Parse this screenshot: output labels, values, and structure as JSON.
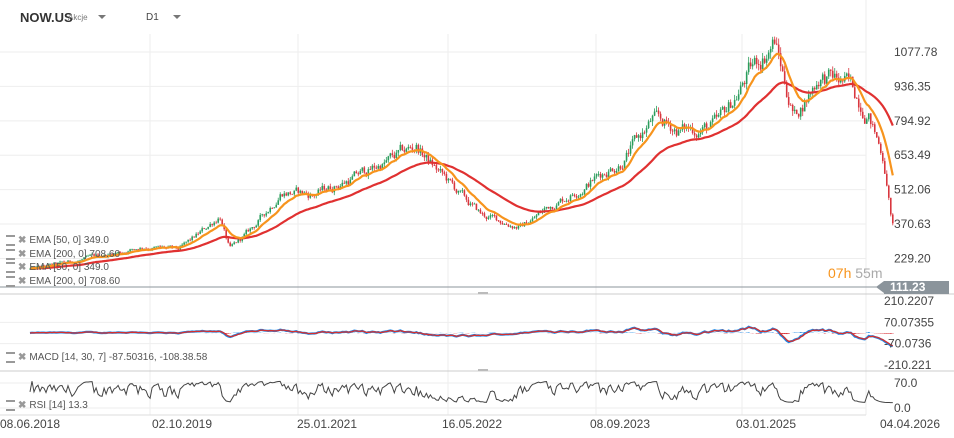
{
  "header": {
    "symbol": "NOW.US",
    "asset_type": "Akcje",
    "timeframe": "D1"
  },
  "price_axis": {
    "labels": [
      "1077.78",
      "936.35",
      "794.92",
      "653.49",
      "512.06",
      "370.63",
      "229.20"
    ],
    "values": [
      1077.78,
      936.35,
      794.92,
      653.49,
      512.06,
      370.63,
      229.2
    ]
  },
  "current_price": "111.23",
  "countdown": {
    "hours": "07h",
    "minutes": "55m"
  },
  "legend": [
    {
      "label": "EMA [50, 0] 349.0"
    },
    {
      "label": "EMA [200, 0] 708.60"
    },
    {
      "label": "EMA [50, 0] 349.0"
    },
    {
      "label": "EMA [200, 0] 708.60"
    }
  ],
  "macd": {
    "label": "MACD [14, 30, 7] -87.50316, -108.38.58",
    "axis_labels": [
      "210.2207",
      "70.07355",
      "-70.0736",
      "-210.221"
    ],
    "axis_values": [
      210.2207,
      70.07355,
      -70.0736,
      -210.221
    ]
  },
  "rsi": {
    "label": "RSI [14] 13.3",
    "axis_labels": [
      "70.0",
      "0.0"
    ],
    "axis_values": [
      70,
      0
    ]
  },
  "date_axis": {
    "labels": [
      "08.06.2018",
      "02.10.2019",
      "25.01.2021",
      "16.05.2022",
      "08.09.2023",
      "03.01.2025",
      "04.04.2026"
    ]
  },
  "colors": {
    "up": "#2a9d5c",
    "down": "#d9363e",
    "ema50": "#f7941d",
    "ema200": "#e03131",
    "macd": "#1e88e5",
    "signal": "#d32f2f"
  },
  "chart_data": {
    "type": "candlestick",
    "price_path": [
      [
        "2018-06-08",
        185
      ],
      [
        "2019-06-15",
        280
      ],
      [
        "2019-10-02",
        262
      ],
      [
        "2020-02-15",
        410
      ],
      [
        "2020-03-18",
        265
      ],
      [
        "2020-09-01",
        510
      ],
      [
        "2020-12-10",
        490
      ],
      [
        "2021-01-25",
        515
      ],
      [
        "2021-11-15",
        690
      ],
      [
        "2022-02-20",
        550
      ],
      [
        "2022-06-15",
        405
      ],
      [
        "2022-10-20",
        360
      ],
      [
        "2023-01-20",
        445
      ],
      [
        "2023-07-20",
        590
      ],
      [
        "2023-09-08",
        630
      ],
      [
        "2023-12-20",
        795
      ],
      [
        "2024-03-20",
        755
      ],
      [
        "2024-07-20",
        775
      ],
      [
        "2024-10-25",
        985
      ],
      [
        "2025-01-20",
        1130
      ],
      [
        "2025-03-25",
        815
      ],
      [
        "2025-06-15",
        985
      ],
      [
        "2025-09-15",
        940
      ],
      [
        "2025-11-20",
        840
      ],
      [
        "2026-01-10",
        640
      ],
      [
        "2026-02-10",
        350
      ]
    ],
    "indicators": [
      "EMA 50",
      "EMA 200",
      "MACD 14,30,7",
      "RSI 14"
    ]
  }
}
